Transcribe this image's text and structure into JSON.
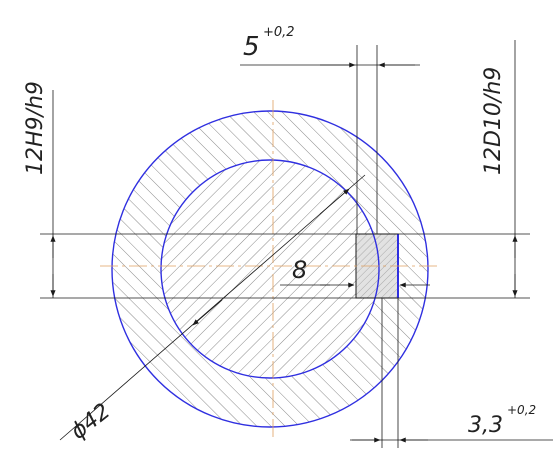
{
  "dimensions": {
    "slot_width": {
      "value": "5",
      "tolerance": "+0,2"
    },
    "hub_fit": "12H9/h9",
    "shaft_fit": "12D10/h9",
    "key_dim": "8",
    "outer_diameter": "ϕ42",
    "key_depth": {
      "value": "3,3",
      "tolerance": "+0,2"
    }
  },
  "colors": {
    "contour": "#2f2fe0",
    "hatch": "#8a8a8a",
    "center_line": "#e0a060",
    "dimension_line": "#1a1a1a",
    "key_fill": "#d8d8d8"
  }
}
